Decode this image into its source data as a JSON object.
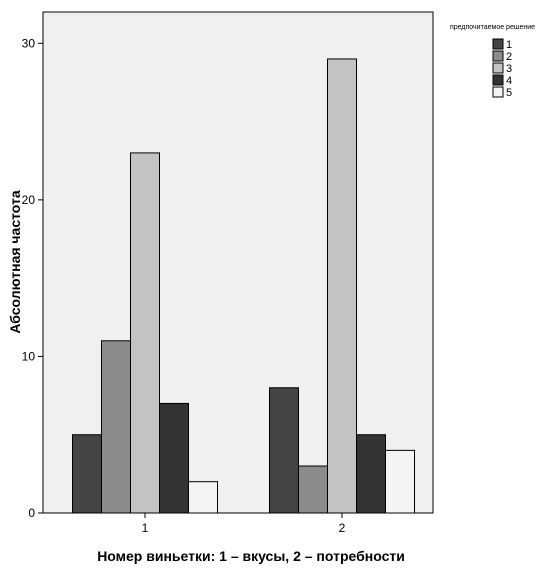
{
  "chart_data": {
    "type": "bar",
    "title": "",
    "xlabel": "Номер виньетки: 1 – вкусы, 2 – потребности",
    "ylabel": "Абсолютная частота",
    "categories": [
      "1",
      "2"
    ],
    "ylim": [
      0,
      32
    ],
    "yticks": [
      0,
      10,
      20,
      30
    ],
    "grid": false,
    "legend": {
      "title": "предпочитаемое решение",
      "position": "top-right"
    },
    "series": [
      {
        "name": "1",
        "values": [
          5,
          8
        ],
        "color": "#444444"
      },
      {
        "name": "2",
        "values": [
          11,
          3
        ],
        "color": "#8c8c8c"
      },
      {
        "name": "3",
        "values": [
          23,
          29
        ],
        "color": "#c3c3c3"
      },
      {
        "name": "4",
        "values": [
          7,
          5
        ],
        "color": "#333333"
      },
      {
        "name": "5",
        "values": [
          2,
          4
        ],
        "color": "#f4f4f4"
      }
    ],
    "plot_background": "#f0f0f0",
    "bar_outline": "#000000"
  }
}
